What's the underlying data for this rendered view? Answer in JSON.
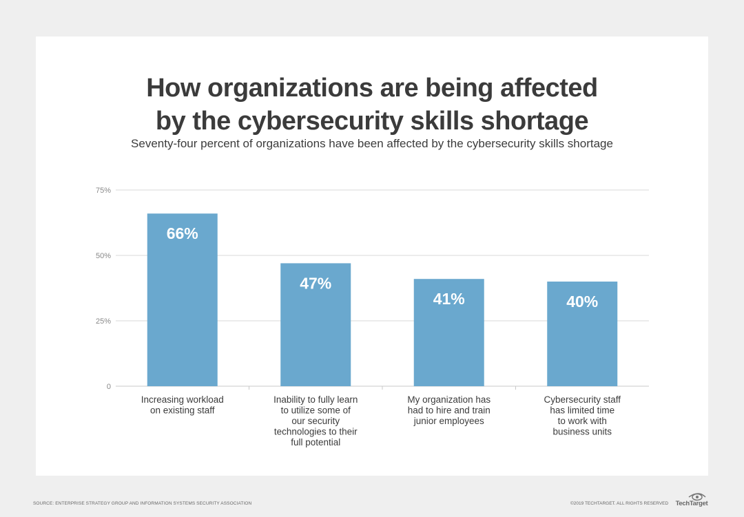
{
  "title_lines": [
    "How organizations are being affected",
    "by the cybersecurity skills shortage"
  ],
  "subtitle": "Seventy-four percent of organizations have been affected by the cybersecurity skills shortage",
  "footer": {
    "source": "SOURCE: ENTERPRISE STRATEGY GROUP AND INFORMATION SYSTEMS SECURITY ASSOCIATION",
    "copyright": "©2019 TECHTARGET. ALL RIGHTS RESERVED",
    "logo": "TechTarget"
  },
  "colors": {
    "bar": "#6aa8ce",
    "grid": "#d9d9d9",
    "text": "#3b3b3b",
    "tick": "#888888",
    "label": "#ffffff"
  },
  "chart_data": {
    "type": "bar",
    "title": "How organizations are being affected by the cybersecurity skills shortage",
    "subtitle": "Seventy-four percent of organizations have been affected by the cybersecurity skills shortage",
    "categories": [
      [
        "Increasing workload",
        "on existing staff"
      ],
      [
        "Inability to fully learn",
        "to utilize some of",
        "our security",
        "technologies to their",
        "full potential"
      ],
      [
        "My organization has",
        "had to hire and train",
        "junior employees"
      ],
      [
        "Cybersecurity staff",
        "has limited time",
        "to work with",
        "business units"
      ]
    ],
    "values": [
      66,
      47,
      41,
      40
    ],
    "value_labels": [
      "66%",
      "47%",
      "41%",
      "40%"
    ],
    "yticks": [
      0,
      25,
      50,
      75
    ],
    "ytick_labels": [
      "0",
      "25%",
      "50%",
      "75%"
    ],
    "ylim": [
      0,
      75
    ],
    "xlabel": "",
    "ylabel": "",
    "grid": true
  }
}
